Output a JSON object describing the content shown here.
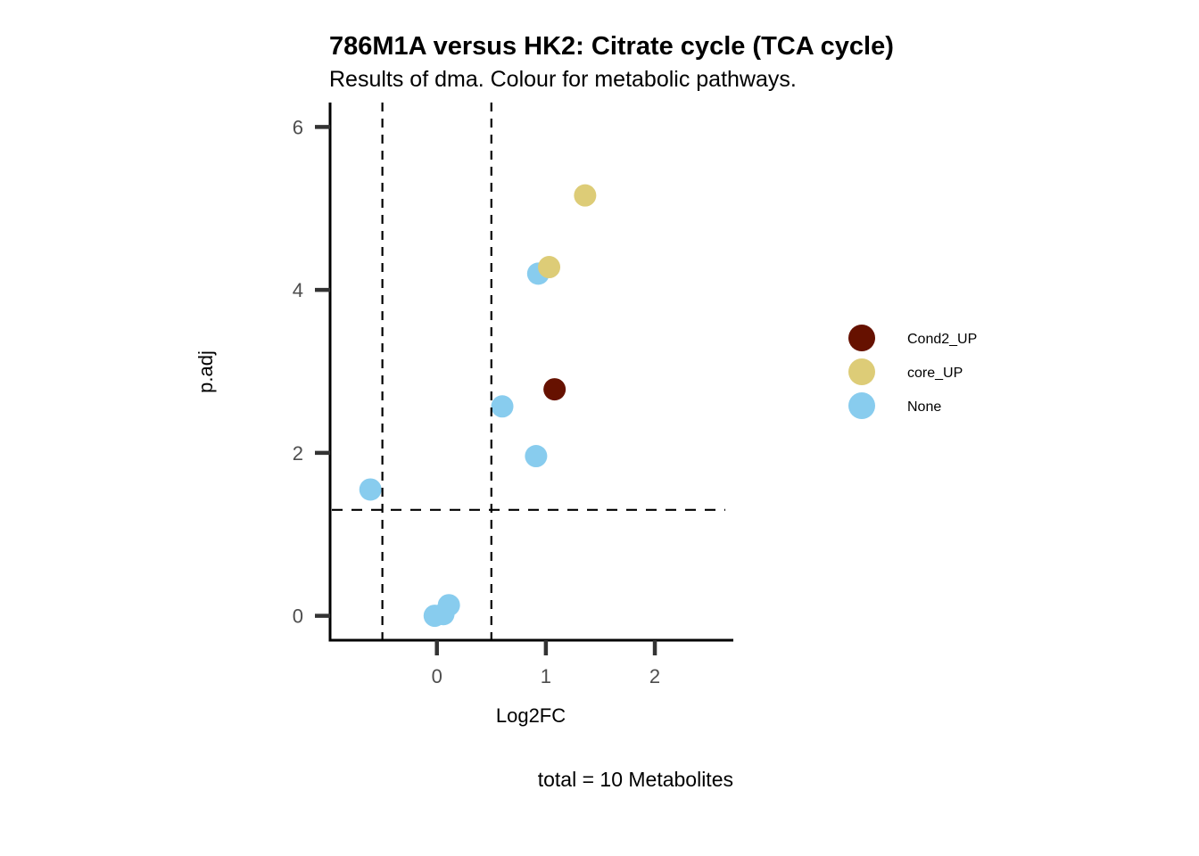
{
  "chart_data": {
    "type": "scatter",
    "title": "786M1A versus HK2: Citrate cycle (TCA cycle)",
    "subtitle": "Results of dma. Colour for metabolic pathways.",
    "xlabel": "Log2FC",
    "ylabel": "p.adj",
    "caption": "total = 10 Metabolites",
    "xlim": [
      -0.98,
      2.72
    ],
    "ylim": [
      -0.3,
      6.3
    ],
    "x_ticks": [
      0,
      1,
      2
    ],
    "x_tick_labels": [
      "0",
      "1",
      "2"
    ],
    "y_ticks": [
      0,
      2,
      4,
      6
    ],
    "y_tick_labels": [
      "0",
      "2",
      "4",
      "6"
    ],
    "grid": false,
    "reference_lines": {
      "vertical": [
        -0.5,
        0.5
      ],
      "horizontal": [
        1.3
      ]
    },
    "legend_position": "right",
    "legend": [
      {
        "name": "Cond2_UP",
        "color": "#661100"
      },
      {
        "name": "core_UP",
        "color": "#DDCC77"
      },
      {
        "name": "None",
        "color": "#88CCEE"
      }
    ],
    "points": [
      {
        "x": -0.61,
        "y": 1.55,
        "group": "None"
      },
      {
        "x": -0.02,
        "y": 0.0,
        "group": "None"
      },
      {
        "x": 0.06,
        "y": 0.02,
        "group": "None"
      },
      {
        "x": 0.11,
        "y": 0.13,
        "group": "None"
      },
      {
        "x": 0.6,
        "y": 2.57,
        "group": "None"
      },
      {
        "x": 0.91,
        "y": 1.96,
        "group": "None"
      },
      {
        "x": 0.93,
        "y": 4.2,
        "group": "None"
      },
      {
        "x": 1.03,
        "y": 4.28,
        "group": "core_UP"
      },
      {
        "x": 1.36,
        "y": 5.16,
        "group": "core_UP"
      },
      {
        "x": 1.08,
        "y": 2.78,
        "group": "Cond2_UP"
      }
    ]
  }
}
